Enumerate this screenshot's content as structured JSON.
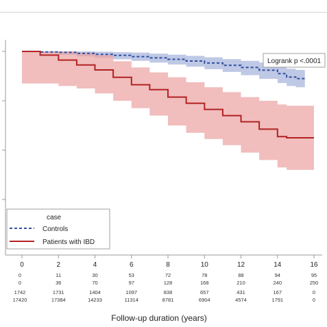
{
  "chart_data": {
    "type": "line",
    "title": "",
    "xlabel": "Follow-up duration (years)",
    "ylabel": "",
    "xlim": [
      0,
      16
    ],
    "ylim": [
      0.4,
      1.0
    ],
    "x_ticks": [
      0,
      2,
      4,
      6,
      8,
      10,
      12,
      14,
      16
    ],
    "grid": false,
    "annotation": "Logrank p <.0001",
    "legend": {
      "title": "case",
      "placement": "bottom-left",
      "entries": [
        {
          "label": "Controls",
          "style": "dashed",
          "color": "#2f4f9e"
        },
        {
          "label": "Patients with IBD",
          "style": "solid",
          "color": "#b22222"
        }
      ]
    },
    "series": [
      {
        "name": "Controls",
        "color": "#2f4f9e",
        "band_color": "#a9b5dc",
        "x": [
          0,
          1,
          2,
          3,
          4,
          5,
          6,
          7,
          8,
          9,
          10,
          11,
          12,
          13,
          14,
          14.5,
          15,
          15.5
        ],
        "y": [
          1.0,
          0.998,
          0.996,
          0.992,
          0.988,
          0.984,
          0.979,
          0.974,
          0.968,
          0.961,
          0.953,
          0.944,
          0.935,
          0.924,
          0.91,
          0.896,
          0.89,
          0.89
        ],
        "lower": [
          1.0,
          0.992,
          0.986,
          0.98,
          0.974,
          0.968,
          0.962,
          0.955,
          0.947,
          0.938,
          0.928,
          0.917,
          0.904,
          0.889,
          0.872,
          0.86,
          0.855,
          0.855
        ],
        "upper": [
          1.0,
          1.0,
          1.0,
          1.0,
          0.999,
          0.997,
          0.995,
          0.991,
          0.987,
          0.982,
          0.976,
          0.969,
          0.962,
          0.955,
          0.945,
          0.93,
          0.925,
          0.925
        ]
      },
      {
        "name": "Patients with IBD",
        "color": "#b22222",
        "band_color": "#eba1a1",
        "x": [
          0,
          1,
          2,
          3,
          4,
          5,
          6,
          7,
          8,
          9,
          10,
          11,
          12,
          13,
          14,
          14.5,
          15,
          16
        ],
        "y": [
          1.0,
          0.985,
          0.965,
          0.945,
          0.925,
          0.895,
          0.865,
          0.845,
          0.815,
          0.79,
          0.765,
          0.74,
          0.715,
          0.685,
          0.655,
          0.65,
          0.65,
          0.65
        ],
        "lower": [
          0.87,
          0.87,
          0.86,
          0.85,
          0.83,
          0.8,
          0.77,
          0.74,
          0.7,
          0.67,
          0.645,
          0.62,
          0.59,
          0.56,
          0.53,
          0.52,
          0.52,
          0.52
        ],
        "upper": [
          1.0,
          1.0,
          1.0,
          0.995,
          0.985,
          0.96,
          0.935,
          0.915,
          0.895,
          0.875,
          0.855,
          0.835,
          0.815,
          0.8,
          0.785,
          0.78,
          0.78,
          0.78
        ]
      }
    ],
    "risk_table": {
      "x": [
        0,
        2,
        4,
        6,
        8,
        10,
        12,
        14,
        16
      ],
      "rows": [
        [
          "0",
          "11",
          "30",
          "53",
          "72",
          "78",
          "88",
          "94",
          "95"
        ],
        [
          "0",
          "36",
          "70",
          "97",
          "128",
          "168",
          "210",
          "240",
          "250"
        ],
        [
          "1742",
          "1731",
          "1404",
          "1097",
          "838",
          "657",
          "431",
          "167",
          "0"
        ],
        [
          "17420",
          "17384",
          "14233",
          "11314",
          "8781",
          "6904",
          "4574",
          "1791",
          "0"
        ]
      ]
    }
  }
}
